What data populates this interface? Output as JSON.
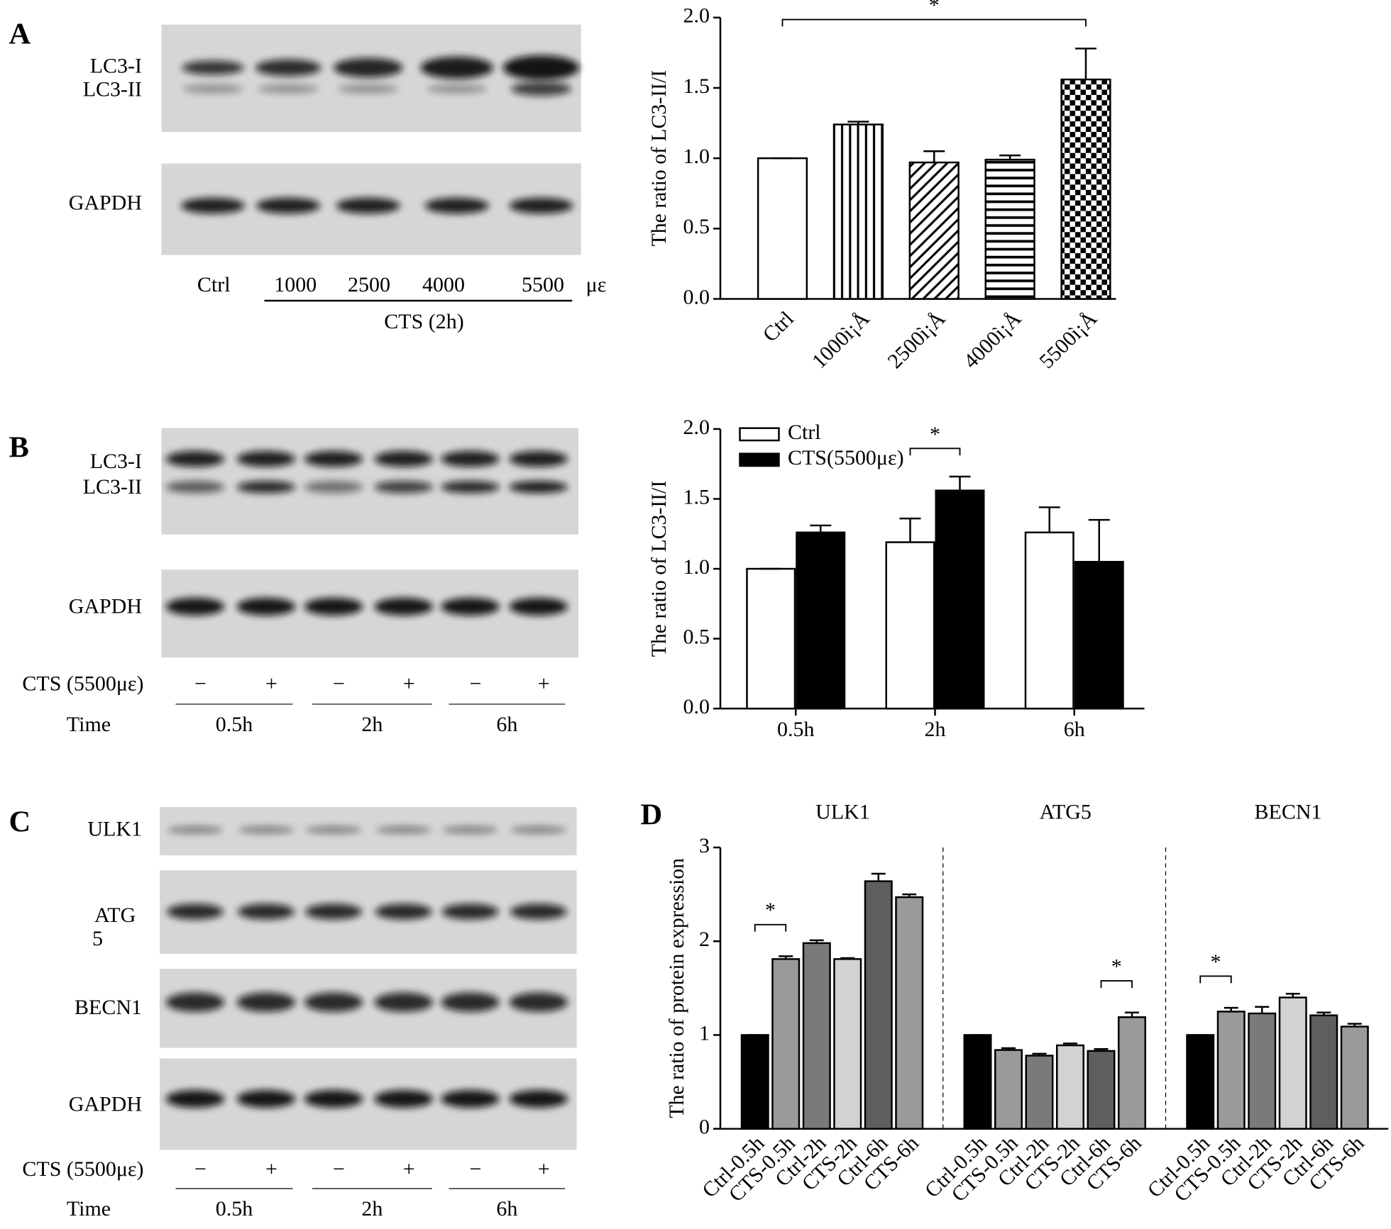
{
  "panels": [
    "A",
    "B",
    "C",
    "D"
  ],
  "blots": {
    "A": {
      "rows": [
        "LC3-I",
        "LC3-II",
        "GAPDH"
      ],
      "lanes": [
        "Ctrl",
        "1000",
        "2500",
        "4000",
        "5500"
      ],
      "unit": "με",
      "treatment": "CTS (2h)"
    },
    "B": {
      "rows": [
        "LC3-I",
        "LC3-II",
        "GAPDH"
      ],
      "treatment_label": "CTS (5500με)",
      "signs": [
        "−",
        "+",
        "−",
        "+",
        "−",
        "+"
      ],
      "time_label": "Time",
      "times": [
        "0.5h",
        "2h",
        "6h"
      ]
    },
    "C": {
      "rows": [
        "ULK1",
        [
          "ATG",
          "5"
        ],
        "BECN1",
        "GAPDH"
      ],
      "treatment_label": "CTS (5500με)",
      "signs": [
        "−",
        "+",
        "−",
        "+",
        "−",
        "+"
      ],
      "time_label": "Time",
      "times": [
        "0.5h",
        "2h",
        "6h"
      ]
    }
  },
  "chart_data": [
    {
      "type": "bar",
      "ylabel": "The ratio of LC3-II/I",
      "categories": [
        "Ctrl",
        "1000ì¡Å",
        "2500ì¡Å",
        "4000ì¡Å",
        "5500ì¡Å"
      ],
      "values": [
        1.0,
        1.24,
        0.97,
        0.99,
        1.56
      ],
      "errors": [
        0,
        0.02,
        0.08,
        0.03,
        0.22
      ],
      "patterns": [
        "none",
        "vertical",
        "diagonal",
        "horizontal",
        "checker"
      ],
      "color": "#000000",
      "ylim": [
        0,
        2
      ],
      "yticks": [
        {
          "value": 0,
          "label": "0.0"
        },
        {
          "value": 0.5,
          "label": "0.5"
        },
        {
          "value": 1,
          "label": "1.0"
        },
        {
          "value": 1.5,
          "label": "1.5"
        },
        {
          "value": 2,
          "label": "2.0"
        }
      ],
      "annotation": "*"
    },
    {
      "type": "grouped-bar",
      "ylabel": "The ratio of LC3-II/I",
      "categories": [
        "0.5h",
        "2h",
        "6h"
      ],
      "series": [
        {
          "name": "Ctrl",
          "color": "#ffffff",
          "values": [
            1.0,
            1.19,
            1.26
          ],
          "errors": [
            0,
            0.17,
            0.18
          ]
        },
        {
          "name": "CTS(5500με)",
          "color": "#000000",
          "values": [
            1.26,
            1.56,
            1.05
          ],
          "errors": [
            0.05,
            0.1,
            0.3
          ]
        }
      ],
      "ylim": [
        0,
        2
      ],
      "yticks": [
        {
          "value": 0,
          "label": "0.0"
        },
        {
          "value": 0.5,
          "label": "0.5"
        },
        {
          "value": 1,
          "label": "1.0"
        },
        {
          "value": 1.5,
          "label": "1.5"
        },
        {
          "value": 2,
          "label": "2.0"
        }
      ],
      "legend": "top-left",
      "annotation": "*"
    },
    {
      "type": "panel-bar",
      "ylabel": "The ratio of protein expression",
      "colors": [
        "#000000",
        "#9a9a9a",
        "#7a7a7a",
        "#d2d2d2",
        "#5e5e5e",
        "#9a9a9a"
      ],
      "ylim": [
        0,
        3
      ],
      "yticks": [
        0,
        1,
        2,
        3
      ],
      "groups": [
        {
          "name": "ULK1",
          "categories": [
            "Ctrl-0.5h",
            "CTS-0.5h",
            "Ctrl-2h",
            "CTS-2h",
            "Ctrl-6h",
            "CTS-6h"
          ],
          "values": [
            1.0,
            1.81,
            1.98,
            1.81,
            2.64,
            2.47
          ],
          "errors": [
            0,
            0.03,
            0.03,
            0.01,
            0.08,
            0.03
          ],
          "annotation": "*"
        },
        {
          "name": "ATG5",
          "categories": [
            "Ctrl-0.5h",
            "CTS-0.5h",
            "Ctrl-2h",
            "CTS-2h",
            "Ctrl-6h",
            "CTS-6h"
          ],
          "values": [
            1.0,
            0.84,
            0.78,
            0.89,
            0.83,
            1.19
          ],
          "errors": [
            0,
            0.02,
            0.02,
            0.02,
            0.02,
            0.05
          ],
          "annotation": "*"
        },
        {
          "name": "BECN1",
          "categories": [
            "Ctrl-0.5h",
            "CTS-0.5h",
            "Ctrl-2h",
            "CTS-2h",
            "Ctrl-6h",
            "CTS-6h"
          ],
          "values": [
            1.0,
            1.25,
            1.23,
            1.4,
            1.21,
            1.09
          ],
          "errors": [
            0,
            0.04,
            0.07,
            0.04,
            0.03,
            0.03
          ],
          "annotation": "*"
        }
      ]
    }
  ]
}
